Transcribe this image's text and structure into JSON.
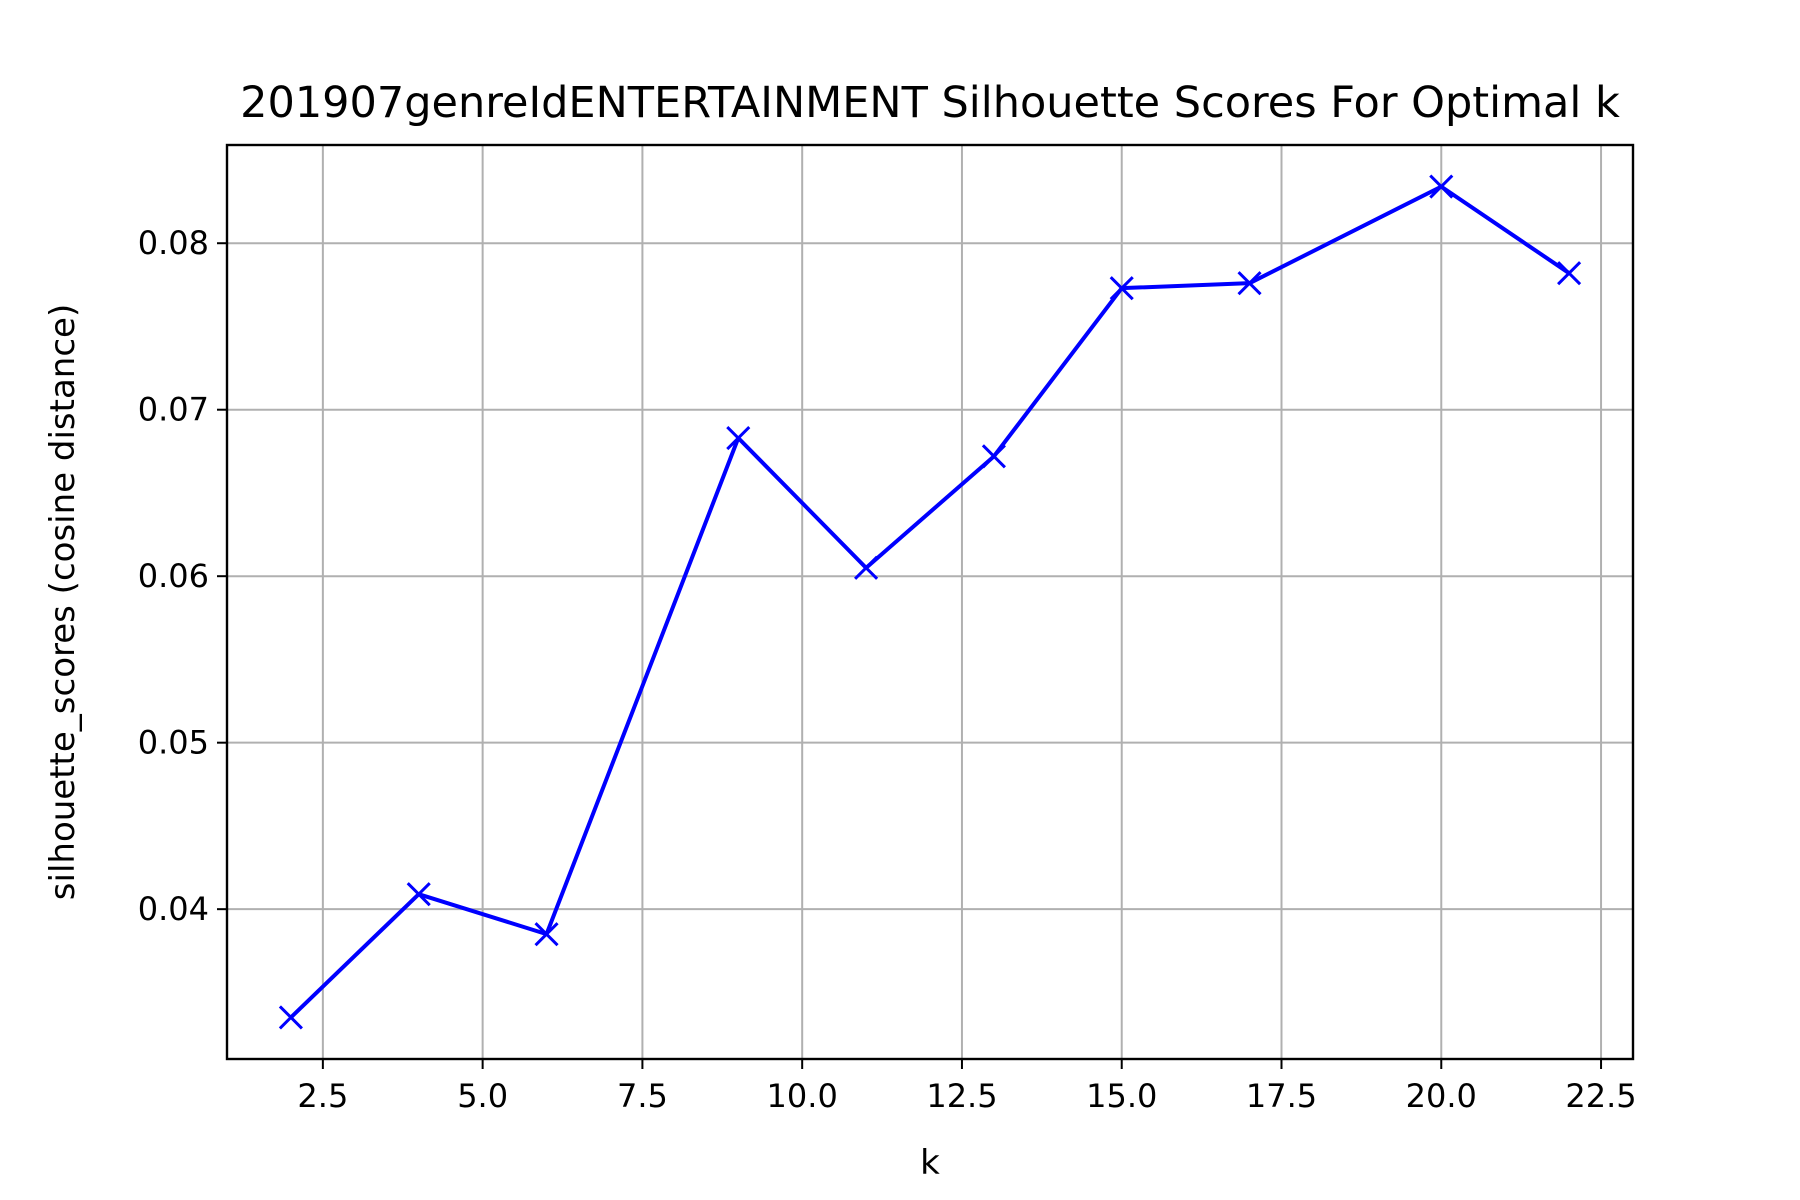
{
  "chart_data": {
    "type": "line",
    "title": "201907genreIdENTERTAINMENT Silhouette Scores For Optimal k",
    "xlabel": "k",
    "ylabel": "silhouette_scores (cosine distance)",
    "x": [
      2,
      4,
      6,
      9,
      11,
      13,
      15,
      17,
      20,
      22
    ],
    "series": [
      {
        "values": [
          0.0335,
          0.0409,
          0.0385,
          0.0683,
          0.0605,
          0.0672,
          0.0773,
          0.0776,
          0.0834,
          0.0782
        ]
      }
    ],
    "xlim": [
      1.0,
      23.0
    ],
    "ylim": [
      0.031,
      0.0859
    ],
    "xticks": [
      2.5,
      5.0,
      7.5,
      10.0,
      12.5,
      15.0,
      17.5,
      20.0,
      22.5
    ],
    "xtick_labels": [
      "2.5",
      "5.0",
      "7.5",
      "10.0",
      "12.5",
      "15.0",
      "17.5",
      "20.0",
      "22.5"
    ],
    "yticks": [
      0.04,
      0.05,
      0.06,
      0.07,
      0.08
    ],
    "ytick_labels": [
      "0.04",
      "0.05",
      "0.06",
      "0.07",
      "0.08"
    ],
    "grid": true,
    "marker": "x",
    "line_color": "#0000ff"
  }
}
